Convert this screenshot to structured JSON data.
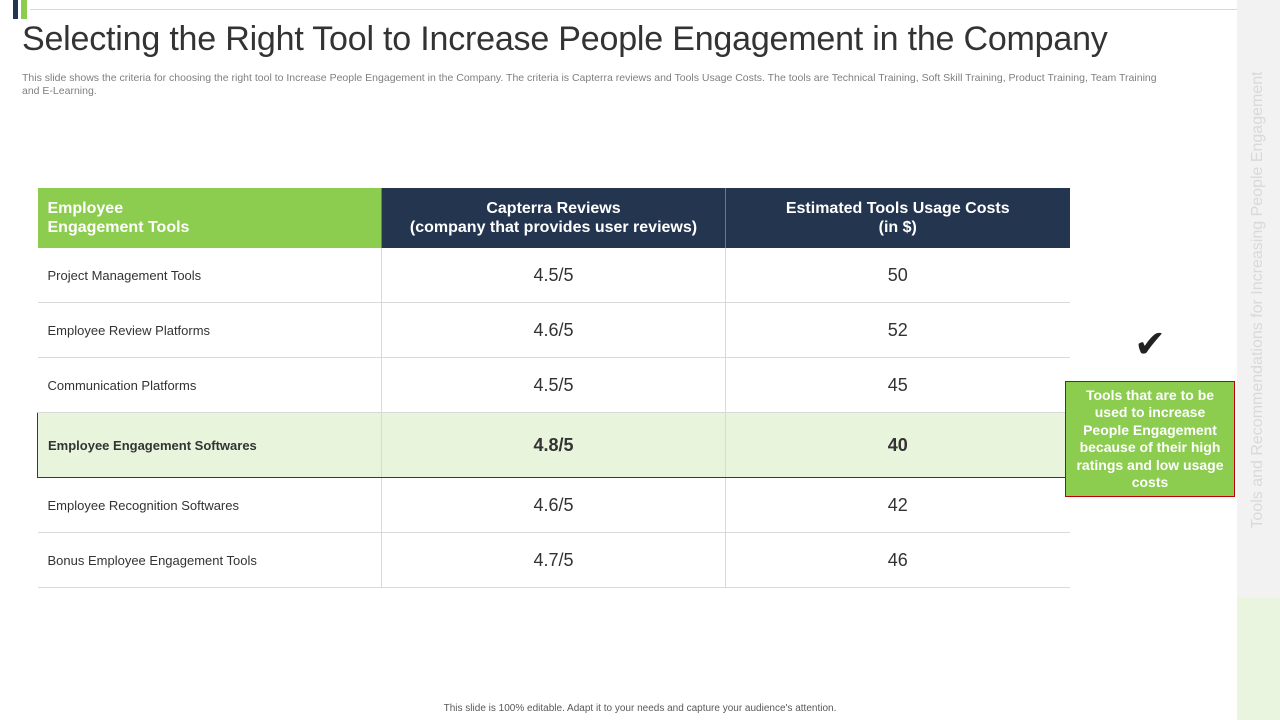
{
  "slide": {
    "title": "Selecting the Right Tool to Increase People Engagement in the Company",
    "subtitle": "This slide shows the criteria for choosing the right tool to Increase People Engagement in the Company. The criteria is Capterra reviews and Tools Usage Costs. The tools are Technical Training, Soft Skill Training, Product Training, Team Training and E-Learning.",
    "sidebar_text": "Tools and Recommendations for Increasing People Engagement",
    "footer": "This slide is 100% editable.  Adapt it to your needs and capture your audience's attention."
  },
  "table": {
    "headers": {
      "tools_line1": "Employee",
      "tools_line2": "Engagement Tools",
      "reviews_line1": "Capterra Reviews",
      "reviews_line2": "(company that provides user reviews)",
      "costs_line1": "Estimated  Tools Usage Costs",
      "costs_line2": "(in $)"
    },
    "rows": [
      {
        "tool": "Project Management Tools",
        "review": "4.5/5",
        "cost": "50"
      },
      {
        "tool": "Employee Review  Platforms",
        "review": "4.6/5",
        "cost": "52"
      },
      {
        "tool": "Communication Platforms",
        "review": "4.5/5",
        "cost": "45"
      },
      {
        "tool": "Employee Engagement Softwares",
        "review": "4.8/5",
        "cost": "40"
      },
      {
        "tool": "Employee Recognition Softwares",
        "review": "4.6/5",
        "cost": "42"
      },
      {
        "tool": "Bonus Employee Engagement Tools",
        "review": "4.7/5",
        "cost": "46"
      }
    ]
  },
  "callout": {
    "icon": "checkmark-icon",
    "text": "Tools that are to be used to increase People Engagement because of their high ratings and low usage costs"
  },
  "colors": {
    "accent_green": "#8ccc4f",
    "navy": "#243550",
    "highlight_border": "#c00000",
    "highlight_fill": "#e8f5dc"
  }
}
